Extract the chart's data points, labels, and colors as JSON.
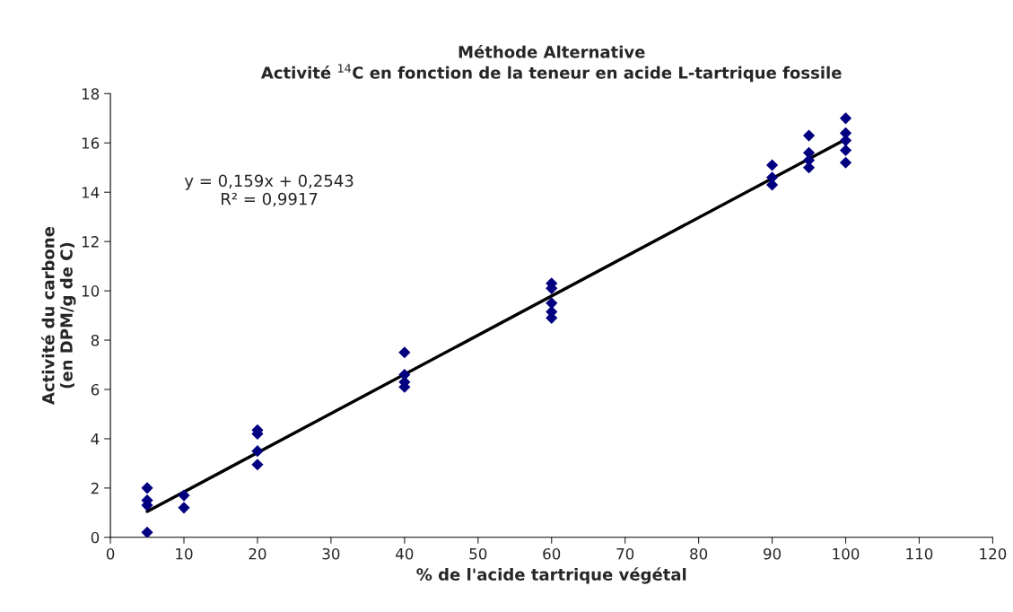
{
  "chart_data": {
    "type": "scatter",
    "title": "Méthode Alternative\nActivité $^{14}$C en fonction de la teneur en acide L-tartrique fossile",
    "xlabel": "% de l'acide tartrique végétal",
    "ylabel": "Activité du carbone\n(en DPM/g de C)",
    "annotations": [
      "y = 0,159x + 0,2543\nR² = 0,9917"
    ],
    "grid": false,
    "legend": false,
    "xlim": [
      0,
      120
    ],
    "xticks": [
      0,
      10,
      20,
      30,
      40,
      50,
      60,
      70,
      80,
      90,
      100,
      110,
      120
    ],
    "ylim": [
      0,
      18
    ],
    "yticks": [
      0,
      2,
      4,
      6,
      8,
      10,
      12,
      14,
      16,
      18
    ],
    "series": [
      {
        "marker": "diamond",
        "color": "#000080",
        "x": [
          5,
          5,
          5,
          5,
          10,
          10,
          20,
          20,
          20,
          20,
          40,
          40,
          40,
          40,
          60,
          60,
          60,
          60,
          60,
          90,
          90,
          90,
          95,
          95,
          95,
          95,
          100,
          100,
          100,
          100,
          100
        ],
        "values": [
          2.0,
          1.5,
          1.3,
          0.2,
          1.7,
          1.2,
          4.35,
          4.2,
          3.5,
          2.95,
          7.5,
          6.6,
          6.3,
          6.1,
          10.3,
          10.1,
          9.5,
          9.15,
          8.9,
          15.1,
          14.6,
          14.3,
          16.3,
          15.6,
          15.3,
          15.0,
          17.0,
          16.4,
          16.1,
          15.7,
          15.2
        ]
      },
      {
        "type": "line",
        "marker": "none",
        "color": "#000000",
        "x": [
          5,
          100
        ],
        "values": [
          1.05,
          16.15
        ]
      }
    ]
  }
}
